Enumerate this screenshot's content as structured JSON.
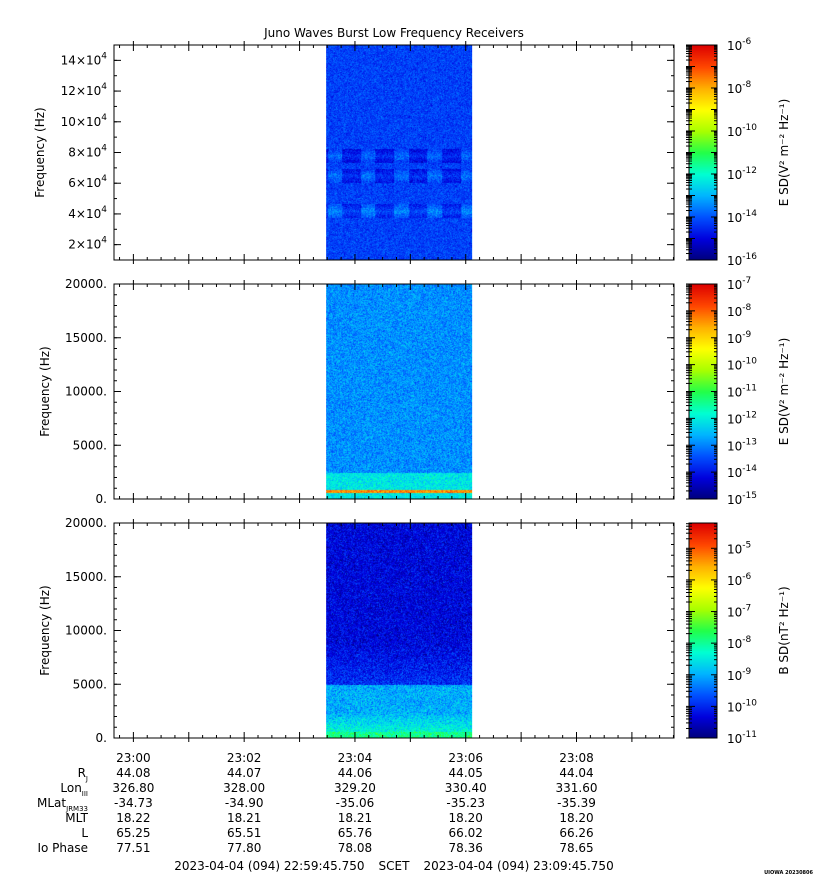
{
  "title": "Juno Waves Burst Low Frequency Receivers",
  "watermark": "UIOWA 20230806",
  "colormap": [
    "#00007a",
    "#0000dd",
    "#0050ff",
    "#00b4ff",
    "#00ffd2",
    "#22ff4a",
    "#a8ff00",
    "#ffff00",
    "#ffb000",
    "#ff4600",
    "#dd0000"
  ],
  "chart_data": [
    {
      "type": "heatmap",
      "name": "panel-1",
      "ylabel": "Frequency (Hz)",
      "ytick_mantissa": [
        "2×10",
        "4×10",
        "6×10",
        "8×10",
        "10×10",
        "12×10",
        "14×10"
      ],
      "ytick_exponent": "4",
      "yticks": [
        20000,
        40000,
        60000,
        80000,
        100000,
        120000,
        140000
      ],
      "ylim": [
        10000,
        150000
      ],
      "xlim_minutes_after_2300": [
        -0.35,
        9.76
      ],
      "data_window_minutes_after_2300": [
        3.48,
        6.12
      ],
      "colorbar_label": "E SD(V² m⁻² Hz⁻¹)",
      "colorbar_ticks": [
        "10-6",
        "10-8",
        "10-10",
        "10-12",
        "10-14",
        "10-16"
      ],
      "colorbar_log_range": [
        -16,
        -6
      ],
      "background_level_log": -14.2,
      "features": [
        {
          "description_hz_center": 42000,
          "level_log": -13.4
        },
        {
          "description_hz_center": 65000,
          "level_log": -13.6
        },
        {
          "description_hz_center": 78000,
          "level_log": -13.7
        }
      ]
    },
    {
      "type": "heatmap",
      "name": "panel-2",
      "ylabel": "Frequency (Hz)",
      "yticks": [
        0,
        5000,
        10000,
        15000,
        20000
      ],
      "ytick_labels": [
        "0.",
        "5000.",
        "10000.",
        "15000.",
        "20000."
      ],
      "ylim": [
        0,
        20000
      ],
      "xlim_minutes_after_2300": [
        -0.35,
        9.76
      ],
      "data_window_minutes_after_2300": [
        3.48,
        6.12
      ],
      "colorbar_label": "E SD(V² m⁻² Hz⁻¹)",
      "colorbar_ticks": [
        "10-7",
        "10-8",
        "10-9",
        "10-10",
        "10-11",
        "10-12",
        "10-13",
        "10-14",
        "10-15"
      ],
      "colorbar_log_range": [
        -15,
        -7
      ],
      "background_level_log": -12.9,
      "features": [
        {
          "band_hz": [
            0,
            2500
          ],
          "level_log": -12.1
        },
        {
          "band_hz": [
            600,
            900
          ],
          "level_log": -8.3
        }
      ]
    },
    {
      "type": "heatmap",
      "name": "panel-3",
      "ylabel": "Frequency (Hz)",
      "yticks": [
        0,
        5000,
        10000,
        15000,
        20000
      ],
      "ytick_labels": [
        "0.",
        "5000.",
        "10000.",
        "15000.",
        "20000."
      ],
      "ylim": [
        0,
        20000
      ],
      "xlim_minutes_after_2300": [
        -0.35,
        9.76
      ],
      "data_window_minutes_after_2300": [
        3.48,
        6.12
      ],
      "colorbar_label": "B SD(nT² Hz⁻¹)",
      "colorbar_ticks": [
        "10-5",
        "10-6",
        "10-7",
        "10-8",
        "10-9",
        "10-10",
        "10-11"
      ],
      "colorbar_log_range": [
        -11,
        -4.2
      ],
      "background_level_log": -10.3,
      "features": [
        {
          "band_hz": [
            0,
            5000
          ],
          "level_log": -9.0
        },
        {
          "band_hz": [
            0,
            600
          ],
          "level_log": -7.9
        }
      ]
    }
  ],
  "x_axis": {
    "ticks": [
      "23:00",
      "23:02",
      "23:04",
      "23:06",
      "23:08"
    ],
    "tick_minutes_after_2300": [
      0,
      2,
      4,
      6,
      8
    ]
  },
  "ephemeris": {
    "rows": [
      {
        "label": "R",
        "sub": "J",
        "values": [
          "44.08",
          "44.07",
          "44.06",
          "44.05",
          "44.04"
        ]
      },
      {
        "label": "Lon",
        "sub": "III",
        "values": [
          "326.80",
          "328.00",
          "329.20",
          "330.40",
          "331.60"
        ]
      },
      {
        "label": "MLat",
        "sub": "JRM33",
        "values": [
          "-34.73",
          "-34.90",
          "-35.06",
          "-35.23",
          "-35.39"
        ]
      },
      {
        "label": "MLT",
        "sub": "",
        "values": [
          "18.22",
          "18.21",
          "18.21",
          "18.20",
          "18.20"
        ]
      },
      {
        "label": "L",
        "sub": "",
        "values": [
          "65.25",
          "65.51",
          "65.76",
          "66.02",
          "66.26"
        ]
      },
      {
        "label": "Io Phase",
        "sub": "",
        "values": [
          "77.51",
          "77.80",
          "78.08",
          "78.36",
          "78.65"
        ]
      }
    ]
  },
  "footer": {
    "start": "2023-04-04 (094) 22:59:45.750",
    "mid": "SCET",
    "end": "2023-04-04 (094) 23:09:45.750"
  }
}
